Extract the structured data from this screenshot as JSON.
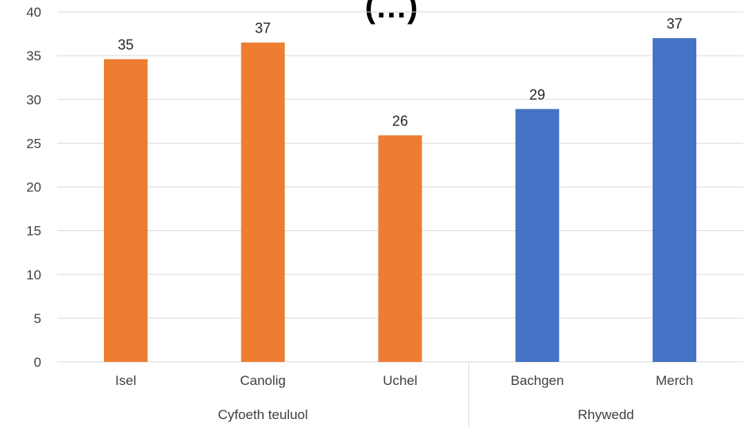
{
  "chart_data": {
    "type": "bar",
    "title": "(…)",
    "ylim": [
      0,
      40
    ],
    "yticks": [
      0,
      5,
      10,
      15,
      20,
      25,
      30,
      35,
      40
    ],
    "grid": true,
    "groups": [
      {
        "label": "Cyfoeth teuluol",
        "color": "#ED7D31",
        "categories": [
          "Isel",
          "Canolig",
          "Uchel"
        ],
        "values": [
          34.6,
          36.5,
          25.9
        ],
        "data_labels": [
          "35",
          "37",
          "26"
        ]
      },
      {
        "label": "Rhywedd",
        "color": "#4472C4",
        "categories": [
          "Bachgen",
          "Merch"
        ],
        "values": [
          28.9,
          37.0
        ],
        "data_labels": [
          "29",
          "37"
        ]
      }
    ]
  }
}
